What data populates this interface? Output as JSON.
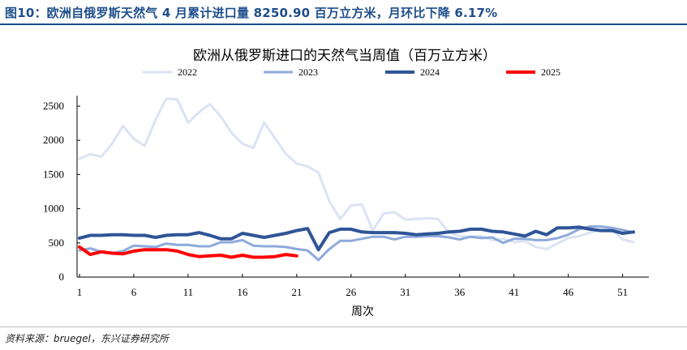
{
  "header": {
    "title": "图10：欧洲自俄罗斯天然气 4 月累计进口量 8250.90 百万立方米，月环比下降 6.17%"
  },
  "source": {
    "text": "资料来源：bruegel，东兴证券研究所"
  },
  "colors": {
    "header": "#1f4e8c",
    "series_2022": "#dbe3f3",
    "series_2023": "#8eaadb",
    "series_2024": "#2f5597",
    "series_2025": "#ff0000"
  },
  "chart_data": {
    "type": "line",
    "title": "欧洲从俄罗斯进口的天然气当周值（百万立方米）",
    "xlabel": "周次",
    "ylabel": "",
    "xlim": [
      1,
      52
    ],
    "ylim": [
      0,
      2500
    ],
    "x_ticks": [
      1,
      6,
      11,
      16,
      21,
      26,
      31,
      36,
      41,
      46,
      51
    ],
    "y_ticks": [
      0,
      500,
      1000,
      1500,
      2000,
      2500
    ],
    "legend_position": "top",
    "grid": false,
    "series": [
      {
        "name": "2022",
        "color": "#dbe3f3",
        "values": [
          1730,
          1800,
          1760,
          1950,
          2210,
          2020,
          1920,
          2300,
          2610,
          2600,
          2260,
          2410,
          2530,
          2350,
          2110,
          1950,
          1890,
          2260,
          2030,
          1800,
          1660,
          1620,
          1530,
          1110,
          850,
          1050,
          1060,
          680,
          930,
          950,
          840,
          850,
          860,
          850,
          650,
          600,
          590,
          600,
          540,
          560,
          510,
          530,
          440,
          410,
          490,
          570,
          600,
          650,
          700,
          700,
          550,
          510
        ]
      },
      {
        "name": "2023",
        "color": "#8eaadb",
        "values": [
          390,
          420,
          370,
          350,
          380,
          460,
          450,
          440,
          490,
          470,
          470,
          450,
          450,
          510,
          510,
          540,
          460,
          450,
          450,
          440,
          410,
          390,
          250,
          410,
          530,
          530,
          560,
          590,
          590,
          550,
          590,
          590,
          600,
          600,
          580,
          550,
          590,
          570,
          580,
          500,
          560,
          560,
          540,
          540,
          570,
          620,
          700,
          740,
          740,
          720,
          690,
          650
        ]
      },
      {
        "name": "2024",
        "color": "#2f5597",
        "values": [
          570,
          610,
          610,
          620,
          620,
          610,
          610,
          580,
          610,
          620,
          620,
          650,
          610,
          560,
          560,
          640,
          610,
          580,
          610,
          640,
          680,
          710,
          400,
          650,
          700,
          700,
          660,
          650,
          650,
          650,
          640,
          620,
          630,
          640,
          660,
          670,
          700,
          700,
          670,
          660,
          630,
          600,
          670,
          620,
          720,
          720,
          730,
          700,
          680,
          680,
          640,
          660
        ]
      },
      {
        "name": "2025",
        "color": "#ff0000",
        "values": [
          440,
          330,
          370,
          350,
          340,
          380,
          400,
          400,
          400,
          380,
          330,
          300,
          310,
          320,
          290,
          320,
          290,
          290,
          300,
          330,
          310
        ]
      }
    ]
  }
}
